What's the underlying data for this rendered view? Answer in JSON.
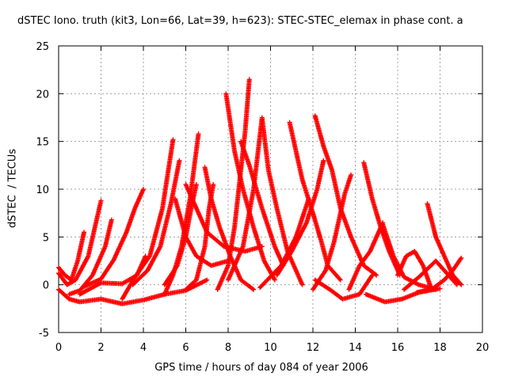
{
  "chart_data": {
    "type": "scatter",
    "title": "dSTEC Iono. truth (kit3, Lon=66, Lat=39, h=623): STEC-STEC_elemax in phase cont. a",
    "xlabel": "GPS time / hours of day 084 of year 2006",
    "ylabel": "dSTEC  / TECUs",
    "xlim": [
      0,
      20
    ],
    "ylim": [
      -5,
      25
    ],
    "x_ticks": [
      "0",
      "2",
      "4",
      "6",
      "8",
      "10",
      "12",
      "14",
      "16",
      "18",
      "20"
    ],
    "y_ticks": [
      "-5",
      "0",
      "5",
      "10",
      "15",
      "20",
      "25"
    ],
    "grid": true,
    "marker": "plus",
    "color": "#ff0000",
    "series": [
      {
        "points": [
          [
            0.0,
            1.8
          ],
          [
            0.3,
            1.0
          ],
          [
            0.6,
            0.5
          ],
          [
            0.9,
            2.5
          ],
          [
            1.2,
            5.5
          ]
        ]
      },
      {
        "points": [
          [
            0.0,
            1.2
          ],
          [
            0.4,
            0.0
          ],
          [
            0.8,
            0.5
          ],
          [
            1.4,
            3.0
          ],
          [
            2.0,
            8.8
          ]
        ]
      },
      {
        "points": [
          [
            0.5,
            -1.0
          ],
          [
            1.0,
            -0.6
          ],
          [
            1.6,
            1.0
          ],
          [
            2.2,
            4.0
          ],
          [
            2.5,
            6.8
          ]
        ]
      },
      {
        "points": [
          [
            1.2,
            -0.2
          ],
          [
            2.0,
            0.6
          ],
          [
            2.6,
            2.6
          ],
          [
            3.2,
            5.5
          ],
          [
            3.6,
            8.0
          ],
          [
            4.0,
            10.0
          ]
        ]
      },
      {
        "points": [
          [
            0.0,
            -0.5
          ],
          [
            0.5,
            -1.5
          ],
          [
            1.0,
            -1.8
          ],
          [
            2.0,
            -1.5
          ],
          [
            3.0,
            -2.0
          ],
          [
            4.0,
            -1.6
          ],
          [
            5.0,
            -1.0
          ],
          [
            6.0,
            -0.6
          ],
          [
            7.0,
            0.5
          ]
        ]
      },
      {
        "points": [
          [
            3.0,
            -1.5
          ],
          [
            3.6,
            0.8
          ],
          [
            4.3,
            3.0
          ],
          [
            4.9,
            8.0
          ],
          [
            5.4,
            15.2
          ]
        ]
      },
      {
        "points": [
          [
            3.5,
            0.0
          ],
          [
            4.2,
            1.5
          ],
          [
            4.8,
            4.0
          ],
          [
            5.3,
            8.5
          ],
          [
            5.7,
            13.0
          ]
        ]
      },
      {
        "points": [
          [
            5.0,
            -1.0
          ],
          [
            5.4,
            1.0
          ],
          [
            5.8,
            4.0
          ],
          [
            6.2,
            9.0
          ],
          [
            6.6,
            15.8
          ]
        ]
      },
      {
        "points": [
          [
            1.0,
            -1.0
          ],
          [
            2.0,
            0.2
          ],
          [
            3.0,
            0.1
          ],
          [
            3.7,
            1.0
          ],
          [
            4.1,
            3.0
          ]
        ]
      },
      {
        "points": [
          [
            5.0,
            0.0
          ],
          [
            5.6,
            2.0
          ],
          [
            6.0,
            5.0
          ],
          [
            6.3,
            8.5
          ],
          [
            6.5,
            10.5
          ]
        ]
      },
      {
        "points": [
          [
            6.0,
            -0.5
          ],
          [
            6.5,
            0.5
          ],
          [
            6.9,
            4.0
          ],
          [
            7.1,
            8.0
          ],
          [
            7.3,
            10.5
          ]
        ]
      },
      {
        "points": [
          [
            6.9,
            12.3
          ],
          [
            7.2,
            9.0
          ],
          [
            7.6,
            6.0
          ],
          [
            8.1,
            3.0
          ],
          [
            8.6,
            0.5
          ],
          [
            9.2,
            -0.5
          ]
        ]
      },
      {
        "points": [
          [
            5.5,
            9.0
          ],
          [
            6.0,
            5.0
          ],
          [
            6.5,
            3.0
          ],
          [
            7.2,
            2.0
          ],
          [
            8.0,
            2.5
          ]
        ]
      },
      {
        "points": [
          [
            6.0,
            10.5
          ],
          [
            6.5,
            8.0
          ],
          [
            7.0,
            5.5
          ],
          [
            7.8,
            4.0
          ],
          [
            8.8,
            3.5
          ],
          [
            9.6,
            4.0
          ]
        ]
      },
      {
        "points": [
          [
            7.9,
            20.0
          ],
          [
            8.3,
            14.0
          ],
          [
            8.7,
            10.0
          ],
          [
            9.2,
            6.0
          ],
          [
            9.7,
            2.5
          ],
          [
            10.2,
            0.5
          ]
        ]
      },
      {
        "points": [
          [
            7.5,
            -0.5
          ],
          [
            8.0,
            2.0
          ],
          [
            8.3,
            6.0
          ],
          [
            8.6,
            12.0
          ],
          [
            8.8,
            16.0
          ],
          [
            9.0,
            21.5
          ]
        ]
      },
      {
        "points": [
          [
            8.6,
            15.0
          ],
          [
            9.0,
            12.5
          ],
          [
            9.6,
            8.0
          ],
          [
            10.2,
            4.0
          ],
          [
            10.6,
            2.0
          ]
        ]
      },
      {
        "points": [
          [
            8.0,
            0.5
          ],
          [
            8.7,
            4.0
          ],
          [
            9.2,
            10.0
          ],
          [
            9.6,
            17.5
          ],
          [
            9.9,
            12.0
          ],
          [
            10.3,
            8.0
          ],
          [
            10.8,
            3.5
          ],
          [
            11.5,
            0.0
          ]
        ]
      },
      {
        "points": [
          [
            9.5,
            -0.3
          ],
          [
            10.5,
            2.0
          ],
          [
            11.2,
            5.0
          ],
          [
            11.8,
            9.0
          ]
        ]
      },
      {
        "points": [
          [
            10.9,
            17.0
          ],
          [
            11.5,
            11.0
          ],
          [
            12.0,
            7.5
          ],
          [
            12.4,
            4.5
          ],
          [
            12.7,
            2.0
          ],
          [
            13.3,
            0.5
          ]
        ]
      },
      {
        "points": [
          [
            10.3,
            1.0
          ],
          [
            11.0,
            3.5
          ],
          [
            11.7,
            6.5
          ],
          [
            12.2,
            10.0
          ],
          [
            12.5,
            13.0
          ]
        ]
      },
      {
        "points": [
          [
            12.1,
            17.7
          ],
          [
            12.5,
            14.5
          ],
          [
            12.9,
            12.0
          ],
          [
            13.3,
            8.0
          ],
          [
            13.8,
            5.0
          ],
          [
            14.4,
            2.0
          ],
          [
            15.0,
            1.0
          ]
        ]
      },
      {
        "points": [
          [
            12.0,
            -0.5
          ],
          [
            12.6,
            1.5
          ],
          [
            13.0,
            4.5
          ],
          [
            13.5,
            9.5
          ],
          [
            13.8,
            11.5
          ]
        ]
      },
      {
        "points": [
          [
            12.1,
            0.5
          ],
          [
            12.8,
            -0.5
          ],
          [
            13.4,
            -1.5
          ],
          [
            14.2,
            -1.0
          ],
          [
            14.8,
            1.0
          ]
        ]
      },
      {
        "points": [
          [
            14.4,
            12.8
          ],
          [
            14.8,
            9.0
          ],
          [
            15.2,
            6.0
          ],
          [
            15.6,
            3.5
          ],
          [
            16.1,
            1.0
          ]
        ]
      },
      {
        "points": [
          [
            13.7,
            -0.5
          ],
          [
            14.2,
            2.0
          ],
          [
            14.7,
            3.5
          ],
          [
            15.0,
            5.0
          ],
          [
            15.3,
            6.5
          ]
        ]
      },
      {
        "points": [
          [
            15.3,
            6.3
          ],
          [
            15.8,
            3.0
          ],
          [
            16.3,
            0.8
          ],
          [
            17.0,
            0.0
          ],
          [
            17.8,
            -0.5
          ]
        ]
      },
      {
        "points": [
          [
            14.5,
            -1.0
          ],
          [
            15.4,
            -1.8
          ],
          [
            16.2,
            -1.5
          ],
          [
            17.0,
            -0.8
          ],
          [
            18.0,
            -0.4
          ]
        ]
      },
      {
        "points": [
          [
            16.0,
            1.0
          ],
          [
            16.4,
            3.0
          ],
          [
            16.8,
            3.5
          ],
          [
            17.2,
            2.0
          ],
          [
            17.6,
            -0.5
          ]
        ]
      },
      {
        "points": [
          [
            17.4,
            8.5
          ],
          [
            17.8,
            5.0
          ],
          [
            18.2,
            3.0
          ],
          [
            18.6,
            1.0
          ],
          [
            19.0,
            0.0
          ]
        ]
      },
      {
        "points": [
          [
            16.3,
            -0.5
          ],
          [
            17.0,
            0.8
          ],
          [
            17.8,
            2.5
          ],
          [
            18.4,
            1.0
          ],
          [
            18.8,
            0.0
          ]
        ]
      },
      {
        "points": [
          [
            16.9,
            -0.8
          ],
          [
            17.6,
            -0.5
          ],
          [
            18.2,
            0.5
          ],
          [
            18.6,
            1.5
          ],
          [
            19.0,
            2.8
          ]
        ]
      }
    ]
  }
}
